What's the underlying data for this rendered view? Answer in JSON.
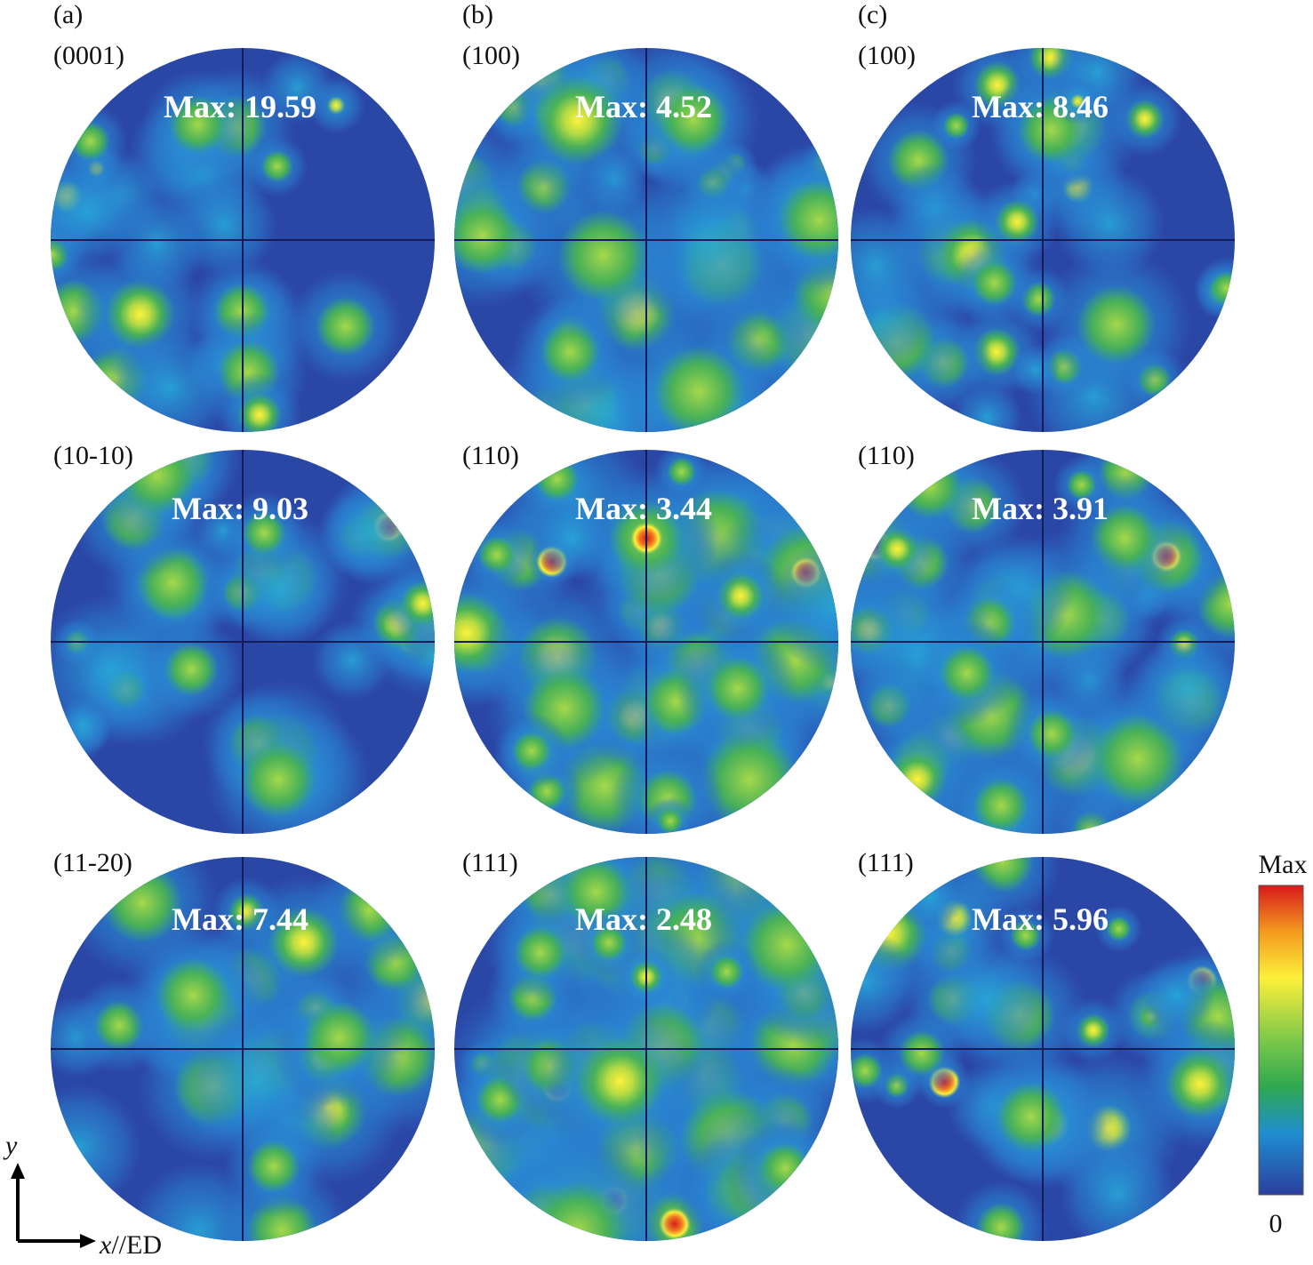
{
  "columns": [
    "(a)",
    "(b)",
    "(c)"
  ],
  "panels": [
    {
      "plane": "(0001)",
      "max": "Max: 19.59"
    },
    {
      "plane": "(100)",
      "max": "Max: 4.52"
    },
    {
      "plane": "(100)",
      "max": "Max: 8.46"
    },
    {
      "plane": "(10-10)",
      "max": "Max: 9.03"
    },
    {
      "plane": "(110)",
      "max": "Max: 3.44"
    },
    {
      "plane": "(110)",
      "max": "Max: 3.91"
    },
    {
      "plane": "(11-20)",
      "max": "Max: 7.44"
    },
    {
      "plane": "(111)",
      "max": "Max: 2.48"
    },
    {
      "plane": "(111)",
      "max": "Max: 5.96"
    }
  ],
  "colorbar": {
    "top": "Max",
    "bottom": "0"
  },
  "axes": {
    "y": "y",
    "x": "x",
    "x_suffix": "//ED"
  }
}
